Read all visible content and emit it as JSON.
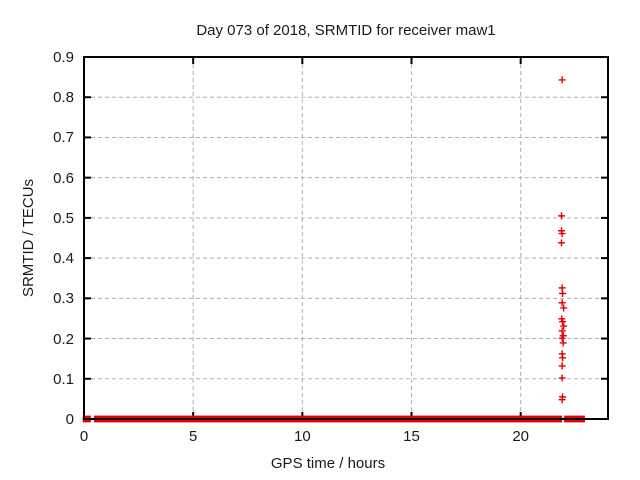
{
  "chart_data": {
    "type": "scatter",
    "title": "Day 073 of 2018, SRMTID for receiver maw1",
    "xlabel": "GPS time / hours",
    "ylabel": "SRMTID / TECUs",
    "xlim": [
      0,
      24
    ],
    "ylim": [
      0,
      0.9
    ],
    "xticks": [
      0,
      5,
      10,
      15,
      20
    ],
    "yticks": [
      0,
      0.1,
      0.2,
      0.3,
      0.4,
      0.5,
      0.6,
      0.7,
      0.8,
      0.9
    ],
    "grid": true,
    "grid_style": "dashed",
    "legend": "none",
    "marker": "plus",
    "series": [
      {
        "name": "SRMTID",
        "baseline_value": 0,
        "baseline_segments_hours": [
          [
            0.03,
            0.22
          ],
          [
            0.55,
            21.8
          ],
          [
            22.08,
            22.85
          ]
        ],
        "outlier_points": [
          [
            21.9,
            0.843
          ],
          [
            21.87,
            0.505
          ],
          [
            21.87,
            0.468
          ],
          [
            21.9,
            0.461
          ],
          [
            21.87,
            0.438
          ],
          [
            21.9,
            0.326
          ],
          [
            21.92,
            0.312
          ],
          [
            21.9,
            0.289
          ],
          [
            21.97,
            0.276
          ],
          [
            21.88,
            0.249
          ],
          [
            21.92,
            0.242
          ],
          [
            21.97,
            0.231
          ],
          [
            21.9,
            0.219
          ],
          [
            21.95,
            0.207
          ],
          [
            21.9,
            0.201
          ],
          [
            21.95,
            0.189
          ],
          [
            21.9,
            0.162
          ],
          [
            21.92,
            0.152
          ],
          [
            21.9,
            0.132
          ],
          [
            21.9,
            0.102
          ],
          [
            21.92,
            0.055
          ],
          [
            21.9,
            0.048
          ]
        ]
      }
    ]
  },
  "colors": {
    "marker": "#e80000",
    "grid": "#b0b0b0",
    "border": "#000000",
    "text": "#1a1a1a",
    "background": "#ffffff"
  }
}
